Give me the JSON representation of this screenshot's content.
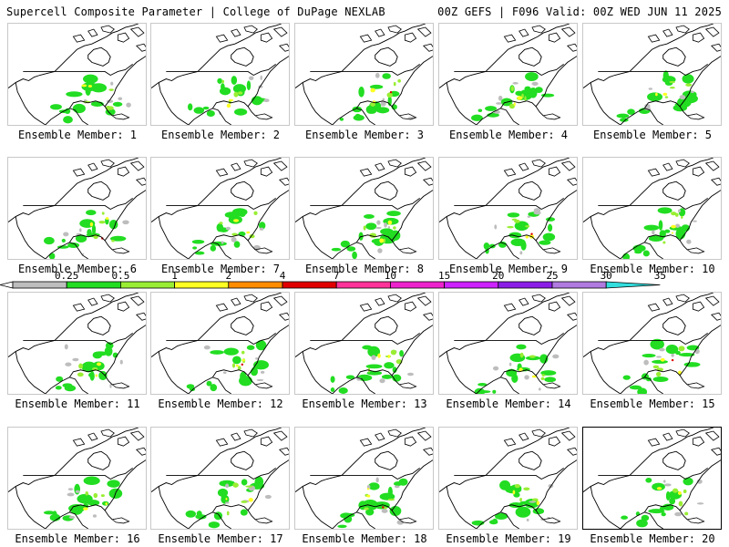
{
  "header": {
    "title": "Supercell Composite Parameter | College of DuPage NEXLAB",
    "run_info": "00Z GEFS | F096 Valid: 00Z WED JUN 11 2025"
  },
  "colorbar": {
    "labels": [
      "0.25",
      "0.5",
      "1",
      "2",
      "4",
      "7",
      "10",
      "15",
      "20",
      "25",
      "30",
      "35"
    ],
    "colors": [
      "#bdbdbd",
      "#22dd22",
      "#99ee33",
      "#ffff22",
      "#ff8c00",
      "#e00000",
      "#ff3399",
      "#ee22cc",
      "#cc22ff",
      "#8b1ee6",
      "#b07ae0",
      "#33dddd"
    ]
  },
  "panels": [
    {
      "label": "Ensemble Member: 1",
      "selected": false
    },
    {
      "label": "Ensemble Member: 2",
      "selected": false
    },
    {
      "label": "Ensemble Member: 3",
      "selected": false
    },
    {
      "label": "Ensemble Member: 4",
      "selected": false
    },
    {
      "label": "Ensemble Member: 5",
      "selected": false
    },
    {
      "label": "Ensemble Member: 6",
      "selected": false
    },
    {
      "label": "Ensemble Member: 7",
      "selected": false
    },
    {
      "label": "Ensemble Member: 8",
      "selected": false
    },
    {
      "label": "Ensemble Member: 9",
      "selected": false
    },
    {
      "label": "Ensemble Member: 10",
      "selected": false
    },
    {
      "label": "Ensemble Member: 11",
      "selected": false
    },
    {
      "label": "Ensemble Member: 12",
      "selected": false
    },
    {
      "label": "Ensemble Member: 13",
      "selected": false
    },
    {
      "label": "Ensemble Member: 14",
      "selected": false
    },
    {
      "label": "Ensemble Member: 15",
      "selected": false
    },
    {
      "label": "Ensemble Member: 16",
      "selected": false
    },
    {
      "label": "Ensemble Member: 17",
      "selected": false
    },
    {
      "label": "Ensemble Member: 18",
      "selected": false
    },
    {
      "label": "Ensemble Member: 19",
      "selected": false
    },
    {
      "label": "Ensemble Member: 20",
      "selected": true
    }
  ]
}
